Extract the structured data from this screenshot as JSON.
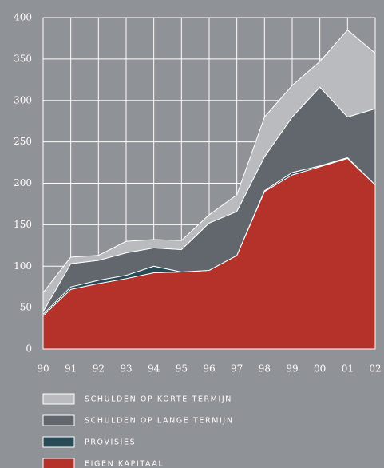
{
  "chart_data": {
    "type": "stacked_area",
    "categories": [
      "90",
      "91",
      "92",
      "93",
      "94",
      "95",
      "96",
      "97",
      "98",
      "99",
      "00",
      "01",
      "02"
    ],
    "series": [
      {
        "name": "SCHULDEN OP KORTE TERMIJN",
        "color": "#b9bbbe",
        "values": [
          23,
          8,
          6,
          14,
          10,
          11,
          10,
          20,
          48,
          38,
          31,
          105,
          67
        ]
      },
      {
        "name": "SCHULDEN OP LANGE TERMIJN",
        "color": "#61676d",
        "values": [
          3,
          28,
          24,
          27,
          22,
          27,
          57,
          53,
          41,
          67,
          95,
          49,
          92
        ]
      },
      {
        "name": "PROVISIES",
        "color": "#284b56",
        "values": [
          2,
          3,
          4,
          4,
          8,
          0,
          0,
          0,
          1,
          3,
          1,
          1,
          0
        ]
      },
      {
        "name": "EIGEN KAPITAAL",
        "color": "#b5322a",
        "values": [
          40,
          72,
          79,
          85,
          92,
          93,
          95,
          113,
          190,
          210,
          220,
          230,
          198
        ]
      }
    ],
    "ylim": [
      0,
      400
    ],
    "yticks": [
      0,
      50,
      100,
      150,
      200,
      250,
      300,
      350,
      400
    ],
    "grid": true
  }
}
